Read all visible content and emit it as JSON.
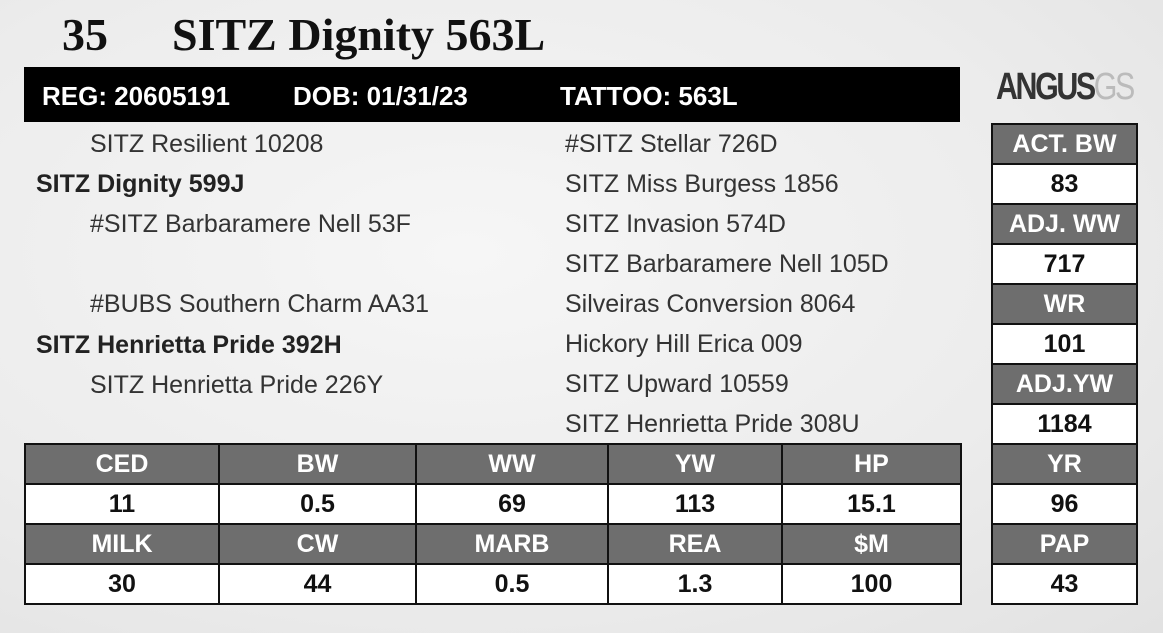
{
  "header": {
    "lot": "35",
    "name": "SITZ Dignity 563L"
  },
  "id_bar": {
    "reg": "REG: 20605191",
    "dob": "DOB: 01/31/23",
    "tattoo": "TATTOO: 563L"
  },
  "logo": {
    "text": "ANGUS",
    "suffix": "GS"
  },
  "pedigree": {
    "sire_sire": "SITZ Resilient 10208",
    "sire": "SITZ Dignity 599J",
    "sire_dam": "#SITZ Barbaramere Nell 53F",
    "dam_sire": "#BUBS Southern Charm AA31",
    "dam": "SITZ Henrietta Pride 392H",
    "dam_dam": "SITZ Henrietta Pride 226Y",
    "outer": [
      "#SITZ Stellar 726D",
      "SITZ Miss Burgess 1856",
      "SITZ Invasion 574D",
      "SITZ Barbaramere Nell 105D",
      "Silveiras Conversion 8064",
      "Hickory Hill Erica 009",
      "SITZ Upward 10559",
      "SITZ Henrietta Pride 308U"
    ]
  },
  "epd_table": {
    "rows": [
      {
        "labels": [
          "CED",
          "BW",
          "WW",
          "YW",
          "HP"
        ],
        "values": [
          "11",
          "0.5",
          "69",
          "113",
          "15.1"
        ]
      },
      {
        "labels": [
          "MILK",
          "CW",
          "MARB",
          "REA",
          "$M"
        ],
        "values": [
          "30",
          "44",
          "0.5",
          "1.3",
          "100"
        ]
      }
    ]
  },
  "side_table": {
    "rows": [
      {
        "label": "ACT. BW",
        "value": "83"
      },
      {
        "label": "ADJ. WW",
        "value": "717"
      },
      {
        "label": "WR",
        "value": "101"
      },
      {
        "label": "ADJ.YW",
        "value": "1184"
      },
      {
        "label": "YR",
        "value": "96"
      },
      {
        "label": "PAP",
        "value": "43"
      }
    ]
  }
}
